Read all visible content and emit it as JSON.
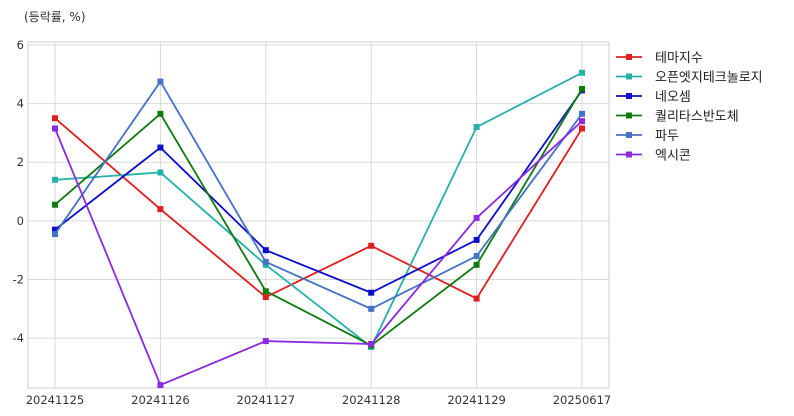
{
  "chart_data": {
    "type": "line",
    "unit_label": "(등락률, %)",
    "categories": [
      "20241125",
      "20241126",
      "20241127",
      "20241128",
      "20241129",
      "20250617"
    ],
    "ylim": [
      -5.7,
      6.1
    ],
    "yticks": [
      -4,
      -2,
      0,
      2,
      4,
      6
    ],
    "grid": true,
    "legend_position": "right-top",
    "series": [
      {
        "name": "테마지수",
        "color": "#e01e1e",
        "values": [
          3.5,
          0.4,
          -2.6,
          -0.85,
          -2.65,
          3.15
        ]
      },
      {
        "name": "오픈엣지테크놀로지",
        "color": "#26b0aa",
        "values": [
          1.4,
          1.65,
          -1.5,
          -4.3,
          3.2,
          5.05
        ]
      },
      {
        "name": "네오셈",
        "color": "#0d0dcc",
        "values": [
          -0.3,
          2.5,
          -1.0,
          -2.45,
          -0.65,
          4.45
        ]
      },
      {
        "name": "퀄리타스반도체",
        "color": "#0f7a0f",
        "values": [
          0.55,
          3.65,
          -2.4,
          -4.25,
          -1.5,
          4.5
        ]
      },
      {
        "name": "파두",
        "color": "#4472c4",
        "values": [
          -0.45,
          4.75,
          -1.4,
          -3.0,
          -1.2,
          3.65
        ]
      },
      {
        "name": "엑시콘",
        "color": "#8a2be2",
        "values": [
          3.15,
          -5.6,
          -4.1,
          -4.2,
          0.1,
          3.4
        ]
      }
    ]
  }
}
